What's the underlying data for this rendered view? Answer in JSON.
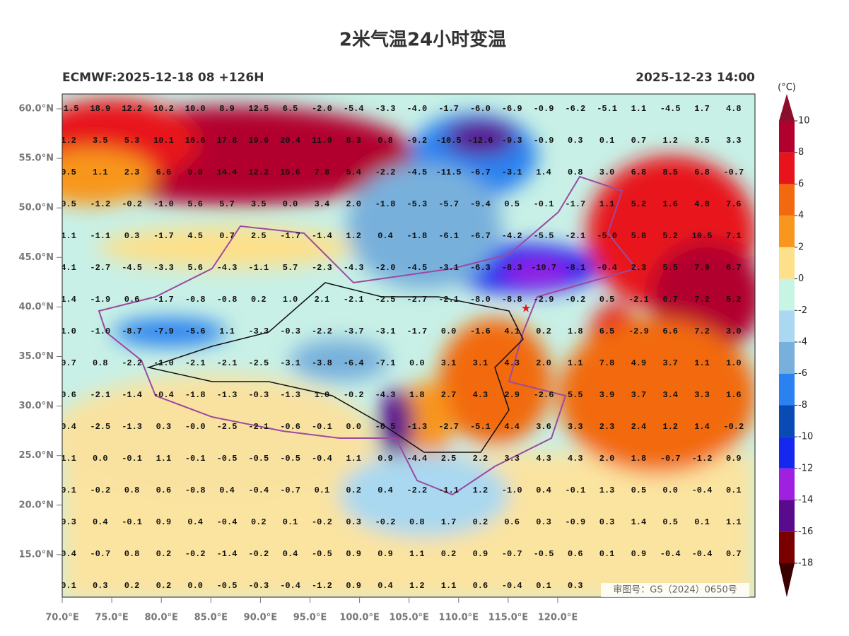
{
  "title": "2米气温24小时变温",
  "left_subtitle": "ECMWF:2025-12-18 08 +126H",
  "right_subtitle": "2025-12-23 14:00",
  "stamp": "审图号：GS（2024）0650号",
  "lat_ticks": [
    {
      "value": 60,
      "label": "60.0°N"
    },
    {
      "value": 55,
      "label": "55.0°N"
    },
    {
      "value": 50,
      "label": "50.0°N"
    },
    {
      "value": 45,
      "label": "45.0°N"
    },
    {
      "value": 40,
      "label": "40.0°N"
    },
    {
      "value": 35,
      "label": "35.0°N"
    },
    {
      "value": 30,
      "label": "30.0°N"
    },
    {
      "value": 25,
      "label": "25.0°N"
    },
    {
      "value": 20,
      "label": "20.0°N"
    },
    {
      "value": 15,
      "label": "15.0°N"
    }
  ],
  "lon_ticks": [
    {
      "value": 70,
      "label": "70.0°E"
    },
    {
      "value": 75,
      "label": "75.0°E"
    },
    {
      "value": 80,
      "label": "80.0°E"
    },
    {
      "value": 85,
      "label": "85.0°E"
    },
    {
      "value": 90,
      "label": "90.0°E"
    },
    {
      "value": 95,
      "label": "95.0°E"
    },
    {
      "value": 100,
      "label": "100.0°E"
    },
    {
      "value": 105,
      "label": "105.0°E"
    },
    {
      "value": 110,
      "label": "110.0°E"
    },
    {
      "value": 115,
      "label": "115.0°E"
    },
    {
      "value": 120,
      "label": "120.0°E"
    }
  ],
  "colorbar": {
    "unit": "(°C)",
    "ticks": [
      10,
      8,
      6,
      4,
      2,
      0,
      -2,
      -4,
      -6,
      -8,
      -10,
      -12,
      -14,
      -16,
      -18
    ],
    "colors": [
      "#b2002e",
      "#e8141c",
      "#f26a10",
      "#f8961e",
      "#fde08a",
      "#c8f4e4",
      "#a9d8f0",
      "#78b0dc",
      "#2a82f0",
      "#0a4ab4",
      "#1428f0",
      "#a020e0",
      "#5a0a8c",
      "#7a0000"
    ],
    "over_color": "#8b0f2d",
    "under_color": "#3a0000"
  },
  "grid_values": [
    [
      "-1.5",
      "18.9",
      "12.2",
      "10.2",
      "10.0",
      "8.9",
      "12.5",
      "6.5",
      "-2.0",
      "-5.4",
      "-3.3",
      "-4.0",
      "-1.7",
      "-6.0",
      "-6.9",
      "-0.9",
      "-6.2",
      "-5.1",
      "1.1",
      "-4.5",
      "1.7",
      "4.8"
    ],
    [
      "1.2",
      "3.5",
      "5.3",
      "10.1",
      "16.6",
      "17.8",
      "19.6",
      "20.4",
      "11.9",
      "8.3",
      "0.8",
      "-9.2",
      "-10.5",
      "-12.6",
      "-9.3",
      "-0.9",
      "0.3",
      "0.1",
      "0.7",
      "1.2",
      "3.5",
      "3.3"
    ],
    [
      "0.5",
      "1.1",
      "2.3",
      "6.6",
      "9.0",
      "14.4",
      "12.2",
      "15.6",
      "7.8",
      "5.4",
      "-2.2",
      "-4.5",
      "-11.5",
      "-6.7",
      "-3.1",
      "1.4",
      "0.8",
      "3.0",
      "6.8",
      "8.5",
      "6.8",
      "-0.7"
    ],
    [
      "0.5",
      "-1.2",
      "-0.2",
      "-1.0",
      "5.6",
      "5.7",
      "3.5",
      "0.0",
      "3.4",
      "2.0",
      "-1.8",
      "-5.3",
      "-5.7",
      "-9.4",
      "0.5",
      "-0.1",
      "-1.7",
      "1.1",
      "5.2",
      "1.6",
      "4.8",
      "7.6"
    ],
    [
      "1.1",
      "-1.1",
      "0.3",
      "-1.7",
      "4.5",
      "0.7",
      "2.5",
      "-1.7",
      "-1.4",
      "1.2",
      "0.4",
      "-1.8",
      "-6.1",
      "-6.7",
      "-4.2",
      "-5.5",
      "-2.1",
      "-5.0",
      "5.8",
      "5.2",
      "10.5",
      "7.1"
    ],
    [
      "4.1",
      "-2.7",
      "-4.5",
      "-3.3",
      "5.6",
      "-4.3",
      "-1.1",
      "5.7",
      "-2.3",
      "-4.3",
      "-2.0",
      "-4.5",
      "-3.1",
      "-6.3",
      "-8.3",
      "-10.7",
      "-8.1",
      "-0.4",
      "2.3",
      "5.5",
      "7.9",
      "6.7"
    ],
    [
      "1.4",
      "-1.9",
      "0.6",
      "-1.7",
      "-0.8",
      "-0.8",
      "0.2",
      "1.0",
      "2.1",
      "-2.1",
      "-2.5",
      "-2.7",
      "-2.1",
      "-8.0",
      "-8.8",
      "-2.9",
      "-0.2",
      "0.5",
      "-2.1",
      "6.7",
      "7.2",
      "5.2"
    ],
    [
      "1.0",
      "-1.0",
      "-8.7",
      "-7.9",
      "-5.6",
      "1.1",
      "-3.3",
      "-0.3",
      "-2.2",
      "-3.7",
      "-3.1",
      "-1.7",
      "0.0",
      "-1.6",
      "4.1",
      "0.2",
      "1.8",
      "6.5",
      "-2.9",
      "6.6",
      "7.2",
      "3.0"
    ],
    [
      "0.7",
      "0.8",
      "-2.2",
      "-1.0",
      "-2.1",
      "-2.1",
      "-2.5",
      "-3.1",
      "-3.8",
      "-6.4",
      "-7.1",
      "0.0",
      "3.1",
      "3.1",
      "4.3",
      "2.0",
      "1.1",
      "7.8",
      "4.9",
      "3.7",
      "1.1",
      "1.0"
    ],
    [
      "0.6",
      "-2.1",
      "-1.4",
      "-0.4",
      "-1.8",
      "-1.3",
      "-0.3",
      "-1.3",
      "1.0",
      "-0.2",
      "-4.3",
      "1.8",
      "2.7",
      "4.3",
      "2.9",
      "-2.6",
      "5.5",
      "3.9",
      "3.7",
      "3.4",
      "3.3",
      "1.6"
    ],
    [
      "0.4",
      "-2.5",
      "-1.3",
      "0.3",
      "-0.0",
      "-2.5",
      "-2.1",
      "-0.6",
      "-0.1",
      "0.0",
      "-0.5",
      "-1.3",
      "-2.7",
      "-5.1",
      "4.4",
      "3.6",
      "3.3",
      "2.3",
      "2.4",
      "1.2",
      "1.4",
      "-0.2"
    ],
    [
      "1.1",
      "0.0",
      "-0.1",
      "1.1",
      "-0.1",
      "-0.5",
      "-0.5",
      "-0.5",
      "-0.4",
      "1.1",
      "0.9",
      "-4.4",
      "2.5",
      "2.2",
      "3.3",
      "4.3",
      "4.3",
      "2.0",
      "1.8",
      "-0.7",
      "-1.2",
      "0.9"
    ],
    [
      "0.1",
      "-0.2",
      "0.8",
      "0.6",
      "-0.8",
      "0.4",
      "-0.4",
      "-0.7",
      "0.1",
      "0.2",
      "0.4",
      "-2.2",
      "-1.1",
      "1.2",
      "-1.0",
      "0.4",
      "-0.1",
      "1.3",
      "0.5",
      "0.0",
      "-0.4",
      "0.1"
    ],
    [
      "0.3",
      "0.4",
      "-0.1",
      "0.9",
      "0.4",
      "-0.4",
      "0.2",
      "0.1",
      "-0.2",
      "0.3",
      "-0.2",
      "0.8",
      "1.7",
      "0.2",
      "0.6",
      "0.3",
      "-0.9",
      "0.3",
      "1.4",
      "0.5",
      "0.1",
      "1.1"
    ],
    [
      "0.4",
      "-0.7",
      "0.8",
      "0.2",
      "-0.2",
      "-1.4",
      "-0.2",
      "0.4",
      "-0.5",
      "0.9",
      "0.9",
      "1.1",
      "0.2",
      "0.9",
      "-0.7",
      "-0.5",
      "0.6",
      "0.1",
      "0.9",
      "-0.4",
      "-0.4",
      "0.7"
    ],
    [
      "0.1",
      "0.3",
      "0.2",
      "0.2",
      "0.0",
      "-0.5",
      "-0.3",
      "-0.4",
      "-1.2",
      "0.9",
      "0.4",
      "1.2",
      "1.1",
      "0.6",
      "-0.4",
      "0.1",
      "0.3"
    ]
  ]
}
